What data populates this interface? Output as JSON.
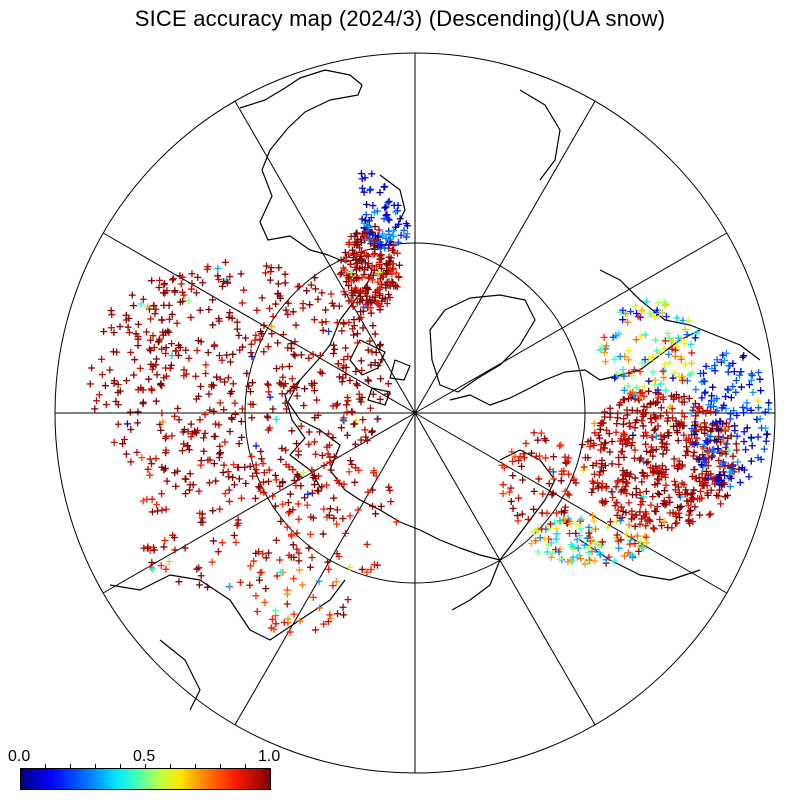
{
  "title": "SICE accuracy map (2024/3) (Descending)(UA snow)",
  "colorbar": {
    "labels": [
      "0.0",
      "0.5",
      "1.0"
    ],
    "min": 0.0,
    "max": 1.0,
    "colormap": "jet",
    "stops": [
      "#00007f",
      "#0000ff",
      "#0080ff",
      "#00e5ff",
      "#40ffbf",
      "#bfff40",
      "#ffe600",
      "#ff8000",
      "#ff1a00",
      "#7f0000"
    ]
  },
  "map": {
    "projection": "north polar stereographic",
    "marker": "+",
    "meridians_deg": [
      0,
      30,
      60,
      90,
      120,
      150,
      180,
      210,
      240,
      270,
      300,
      330
    ],
    "inner_parallel": "circle"
  },
  "colors": {
    "coast": "#000000",
    "grid": "#000000",
    "high_accuracy": "#8b0000",
    "low_accuracy": "#000080"
  }
}
